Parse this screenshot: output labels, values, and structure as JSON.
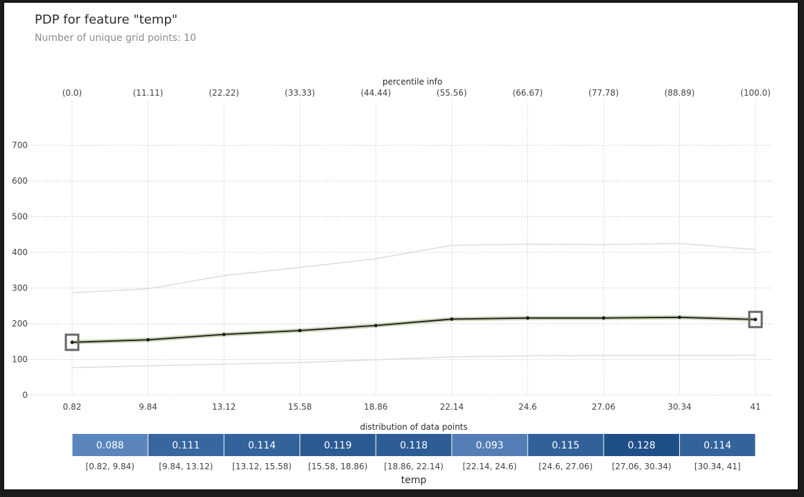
{
  "title": "PDP for feature \"temp\"",
  "subtitle": "Number of unique grid points: 10",
  "chart_data": {
    "type": "line",
    "top_axis_label": "percentile info",
    "percentiles": [
      "(0.0)",
      "(11.11)",
      "(22.22)",
      "(33.33)",
      "(44.44)",
      "(55.56)",
      "(66.67)",
      "(77.78)",
      "(88.89)",
      "(100.0)"
    ],
    "x": [
      "0.82",
      "9.84",
      "13.12",
      "15.58",
      "18.86",
      "22.14",
      "24.6",
      "27.06",
      "30.34",
      "41"
    ],
    "ylim": [
      0,
      750
    ],
    "yticks": [
      0,
      100,
      200,
      300,
      400,
      500,
      600,
      700
    ],
    "grid": true,
    "series": [
      {
        "role": "pdp",
        "values": [
          148,
          155,
          170,
          181,
          195,
          213,
          216,
          216,
          218,
          212
        ]
      },
      {
        "role": "upper",
        "values": [
          287,
          298,
          335,
          358,
          382,
          420,
          423,
          422,
          425,
          408
        ]
      },
      {
        "role": "lower",
        "values": [
          77,
          82,
          87,
          91,
          99,
          107,
          110,
          111,
          111,
          112
        ]
      }
    ],
    "distribution": {
      "label": "distribution of data points",
      "bins": [
        {
          "range": "[0.82, 9.84)",
          "value": "0.088"
        },
        {
          "range": "[9.84, 13.12)",
          "value": "0.111"
        },
        {
          "range": "[13.12, 15.58)",
          "value": "0.114"
        },
        {
          "range": "[15.58, 18.86)",
          "value": "0.119"
        },
        {
          "range": "[18.86, 22.14)",
          "value": "0.118"
        },
        {
          "range": "[22.14, 24.6)",
          "value": "0.093"
        },
        {
          "range": "[24.6, 27.06)",
          "value": "0.115"
        },
        {
          "range": "[27.06, 30.34)",
          "value": "0.128"
        },
        {
          "range": "[30.34, 41]",
          "value": "0.114"
        }
      ]
    },
    "xlabel": "temp",
    "colors": {
      "pdp_line": "#1a1a1a",
      "pdp_glow": "#c8d4b4",
      "ci_line": "#dcdcdc",
      "grid": "#c9c9c9",
      "bin_low": "#5a86bd",
      "bin_high": "#1f4f88"
    }
  }
}
